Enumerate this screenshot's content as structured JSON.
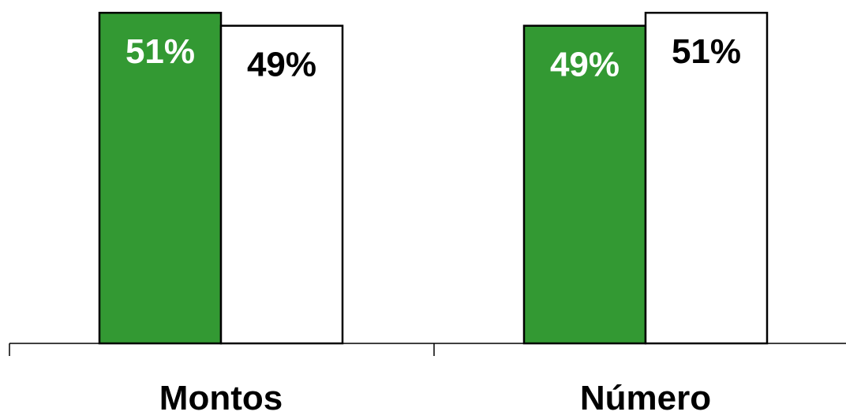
{
  "chart_data": {
    "type": "bar",
    "title": "",
    "xlabel": "",
    "ylabel": "",
    "categories": [
      "Montos",
      "Número"
    ],
    "series": [
      {
        "values": [
          51,
          49
        ],
        "labels": [
          "51%",
          "49%"
        ],
        "color": "#339933",
        "label_color": "#ffffff"
      },
      {
        "values": [
          49,
          51
        ],
        "labels": [
          "49%",
          "51%"
        ],
        "color": "#ffffff",
        "label_color": "#000000"
      }
    ],
    "ylim": [
      0,
      52
    ],
    "grid": false,
    "legend": "none"
  }
}
